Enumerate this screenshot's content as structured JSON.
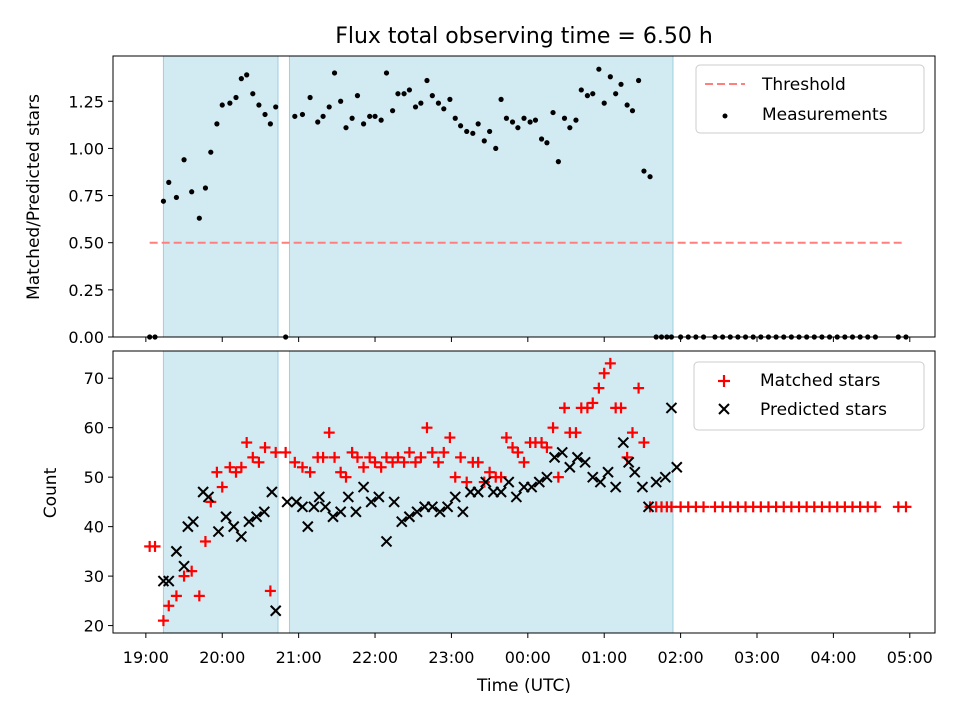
{
  "chart_data": [
    {
      "type": "scatter",
      "title": "Flux total observing time = 6.50 h",
      "ylabel": "Matched/Predicted stars",
      "xlabel": "",
      "ylim": [
        0,
        1.49
      ],
      "xlim_hours": [
        18.57,
        29.33
      ],
      "yticks": [
        {
          "v": 0.0,
          "label": "0.00"
        },
        {
          "v": 0.25,
          "label": "0.25"
        },
        {
          "v": 0.5,
          "label": "0.50"
        },
        {
          "v": 0.75,
          "label": "0.75"
        },
        {
          "v": 1.0,
          "label": "1.00"
        },
        {
          "v": 1.25,
          "label": "1.25"
        }
      ],
      "shaded_intervals_hours": [
        [
          19.23,
          20.73
        ],
        [
          20.88,
          25.9
        ]
      ],
      "threshold": {
        "name": "Threshold",
        "value": 0.5,
        "x_range_hours": [
          19.05,
          28.9
        ],
        "color": "#ff7f7f"
      },
      "legend": [
        "Threshold",
        "Measurements"
      ],
      "series": [
        {
          "name": "Measurements",
          "color": "#000000",
          "x": [
            19.05,
            19.12,
            19.23,
            19.3,
            19.4,
            19.5,
            19.6,
            19.7,
            19.78,
            19.85,
            19.93,
            20.0,
            20.1,
            20.18,
            20.25,
            20.32,
            20.4,
            20.48,
            20.56,
            20.63,
            20.7,
            20.83,
            20.95,
            21.05,
            21.15,
            21.25,
            21.32,
            21.4,
            21.47,
            21.55,
            21.62,
            21.7,
            21.77,
            21.85,
            21.93,
            22.0,
            22.08,
            22.15,
            22.23,
            22.3,
            22.38,
            22.45,
            22.53,
            22.6,
            22.68,
            22.75,
            22.83,
            22.9,
            22.98,
            23.05,
            23.12,
            23.2,
            23.28,
            23.35,
            23.43,
            23.5,
            23.58,
            23.65,
            23.72,
            23.8,
            23.87,
            23.95,
            24.03,
            24.1,
            24.18,
            24.25,
            24.33,
            24.4,
            24.48,
            24.55,
            24.63,
            24.7,
            24.78,
            24.85,
            24.93,
            25.0,
            25.08,
            25.15,
            25.22,
            25.3,
            25.37,
            25.45,
            25.52,
            25.6,
            25.68,
            25.75,
            25.82,
            25.88,
            26.0,
            26.1,
            26.2,
            26.3,
            26.45,
            26.55,
            26.65,
            26.75,
            26.85,
            26.95,
            27.05,
            27.15,
            27.25,
            27.35,
            27.45,
            27.55,
            27.65,
            27.75,
            27.85,
            27.95,
            28.05,
            28.15,
            28.25,
            28.35,
            28.45,
            28.55,
            28.85,
            28.95
          ],
          "y": [
            0,
            0,
            0.72,
            0.82,
            0.74,
            0.94,
            0.77,
            0.63,
            0.79,
            0.98,
            1.13,
            1.23,
            1.24,
            1.27,
            1.37,
            1.39,
            1.29,
            1.23,
            1.18,
            1.13,
            1.22,
            0,
            1.17,
            1.18,
            1.27,
            1.14,
            1.17,
            1.22,
            1.4,
            1.25,
            1.11,
            1.16,
            1.28,
            1.13,
            1.17,
            1.17,
            1.15,
            1.4,
            1.2,
            1.29,
            1.29,
            1.31,
            1.22,
            1.24,
            1.36,
            1.28,
            1.24,
            1.21,
            1.26,
            1.16,
            1.12,
            1.09,
            1.08,
            1.13,
            1.04,
            1.09,
            1.0,
            1.26,
            1.16,
            1.14,
            1.11,
            1.16,
            1.14,
            1.15,
            1.05,
            1.03,
            1.19,
            0.93,
            1.16,
            1.11,
            1.15,
            1.31,
            1.28,
            1.29,
            1.42,
            1.24,
            1.38,
            1.29,
            1.34,
            1.23,
            1.2,
            1.36,
            0.88,
            0.85,
            0,
            0,
            0,
            0,
            0,
            0,
            0,
            0,
            0,
            0,
            0,
            0,
            0,
            0,
            0,
            0,
            0,
            0,
            0,
            0,
            0,
            0,
            0,
            0,
            0,
            0,
            0,
            0,
            0,
            0,
            0,
            0
          ]
        }
      ]
    },
    {
      "type": "scatter",
      "title": "",
      "ylabel": "Count",
      "xlabel": "Time (UTC)",
      "ylim": [
        18.5,
        75.5
      ],
      "xlim_hours": [
        18.57,
        29.33
      ],
      "yticks": [
        {
          "v": 20,
          "label": "20"
        },
        {
          "v": 30,
          "label": "30"
        },
        {
          "v": 40,
          "label": "40"
        },
        {
          "v": 50,
          "label": "50"
        },
        {
          "v": 60,
          "label": "60"
        },
        {
          "v": 70,
          "label": "70"
        }
      ],
      "xticks": [
        {
          "v": 19,
          "label": "19:00"
        },
        {
          "v": 20,
          "label": "20:00"
        },
        {
          "v": 21,
          "label": "21:00"
        },
        {
          "v": 22,
          "label": "22:00"
        },
        {
          "v": 23,
          "label": "23:00"
        },
        {
          "v": 24,
          "label": "00:00"
        },
        {
          "v": 25,
          "label": "01:00"
        },
        {
          "v": 26,
          "label": "02:00"
        },
        {
          "v": 27,
          "label": "03:00"
        },
        {
          "v": 28,
          "label": "04:00"
        },
        {
          "v": 29,
          "label": "05:00"
        }
      ],
      "shaded_intervals_hours": [
        [
          19.23,
          20.73
        ],
        [
          20.88,
          25.9
        ]
      ],
      "legend": [
        "Matched stars",
        "Predicted stars"
      ],
      "series": [
        {
          "name": "Matched stars",
          "marker": "plus",
          "color": "#ff0000",
          "x": [
            19.05,
            19.12,
            19.23,
            19.3,
            19.4,
            19.5,
            19.6,
            19.7,
            19.78,
            19.85,
            19.93,
            20.0,
            20.1,
            20.18,
            20.25,
            20.32,
            20.4,
            20.48,
            20.56,
            20.63,
            20.7,
            20.83,
            20.95,
            21.05,
            21.15,
            21.25,
            21.32,
            21.4,
            21.47,
            21.55,
            21.62,
            21.7,
            21.77,
            21.85,
            21.93,
            22.0,
            22.08,
            22.15,
            22.23,
            22.3,
            22.38,
            22.45,
            22.53,
            22.6,
            22.68,
            22.75,
            22.83,
            22.9,
            22.98,
            23.05,
            23.12,
            23.2,
            23.28,
            23.35,
            23.43,
            23.5,
            23.58,
            23.65,
            23.72,
            23.8,
            23.87,
            23.95,
            24.03,
            24.1,
            24.18,
            24.25,
            24.33,
            24.4,
            24.48,
            24.55,
            24.63,
            24.7,
            24.78,
            24.85,
            24.93,
            25.0,
            25.08,
            25.15,
            25.22,
            25.3,
            25.37,
            25.45,
            25.52,
            25.6,
            25.68,
            25.75,
            25.82,
            25.88,
            26.0,
            26.1,
            26.2,
            26.3,
            26.45,
            26.55,
            26.65,
            26.75,
            26.85,
            26.95,
            27.05,
            27.15,
            27.25,
            27.35,
            27.45,
            27.55,
            27.65,
            27.75,
            27.85,
            27.95,
            28.05,
            28.15,
            28.25,
            28.35,
            28.45,
            28.55,
            28.85,
            28.95
          ],
          "y": [
            36,
            36,
            21,
            24,
            26,
            30,
            31,
            26,
            37,
            45,
            51,
            48,
            52,
            51,
            52,
            57,
            54,
            53,
            56,
            27,
            55,
            55,
            53,
            52,
            51,
            54,
            54,
            59,
            54,
            51,
            50,
            55,
            54,
            52,
            54,
            53,
            52,
            54,
            53,
            54,
            53,
            55,
            53,
            54,
            60,
            55,
            53,
            55,
            58,
            50,
            54,
            49,
            53,
            53,
            49,
            51,
            50,
            50,
            58,
            56,
            55,
            53,
            57,
            57,
            57,
            56,
            60,
            50,
            64,
            59,
            59,
            64,
            64,
            65,
            68,
            71,
            73,
            64,
            64,
            54,
            59,
            68,
            57,
            44,
            44,
            44,
            44,
            44,
            44,
            44,
            44,
            44,
            44,
            44,
            44,
            44,
            44,
            44,
            44,
            44,
            44,
            44,
            44,
            44,
            44,
            44,
            44,
            44,
            44,
            44,
            44,
            44,
            44,
            44,
            44,
            44
          ]
        },
        {
          "name": "Predicted stars",
          "marker": "x",
          "color": "#000000",
          "x": [
            19.23,
            19.3,
            19.4,
            19.5,
            19.55,
            19.62,
            19.75,
            19.82,
            19.95,
            20.05,
            20.15,
            20.25,
            20.35,
            20.45,
            20.55,
            20.65,
            20.7,
            20.85,
            20.97,
            21.05,
            21.12,
            21.2,
            21.27,
            21.35,
            21.45,
            21.55,
            21.65,
            21.75,
            21.85,
            21.95,
            22.05,
            22.15,
            22.25,
            22.35,
            22.45,
            22.55,
            22.65,
            22.75,
            22.85,
            22.95,
            23.05,
            23.15,
            23.25,
            23.35,
            23.45,
            23.55,
            23.65,
            23.75,
            23.85,
            23.95,
            24.05,
            24.15,
            24.25,
            24.35,
            24.45,
            24.55,
            24.65,
            24.75,
            24.85,
            24.95,
            25.05,
            25.15,
            25.25,
            25.32,
            25.4,
            25.5,
            25.58,
            25.68,
            25.8,
            25.88,
            25.95
          ],
          "y": [
            29,
            29,
            35,
            32,
            40,
            41,
            47,
            46,
            39,
            42,
            40,
            38,
            41,
            42,
            43,
            47,
            23,
            45,
            45,
            44,
            40,
            44,
            46,
            44,
            42,
            43,
            46,
            43,
            48,
            45,
            46,
            37,
            45,
            41,
            42,
            43,
            44,
            44,
            43,
            44,
            46,
            43,
            47,
            47,
            49,
            47,
            47,
            49,
            46,
            48,
            48,
            49,
            50,
            54,
            55,
            52,
            54,
            53,
            50,
            49,
            51,
            48,
            57,
            53,
            51,
            48,
            44,
            49,
            50,
            64,
            52
          ]
        }
      ]
    }
  ]
}
